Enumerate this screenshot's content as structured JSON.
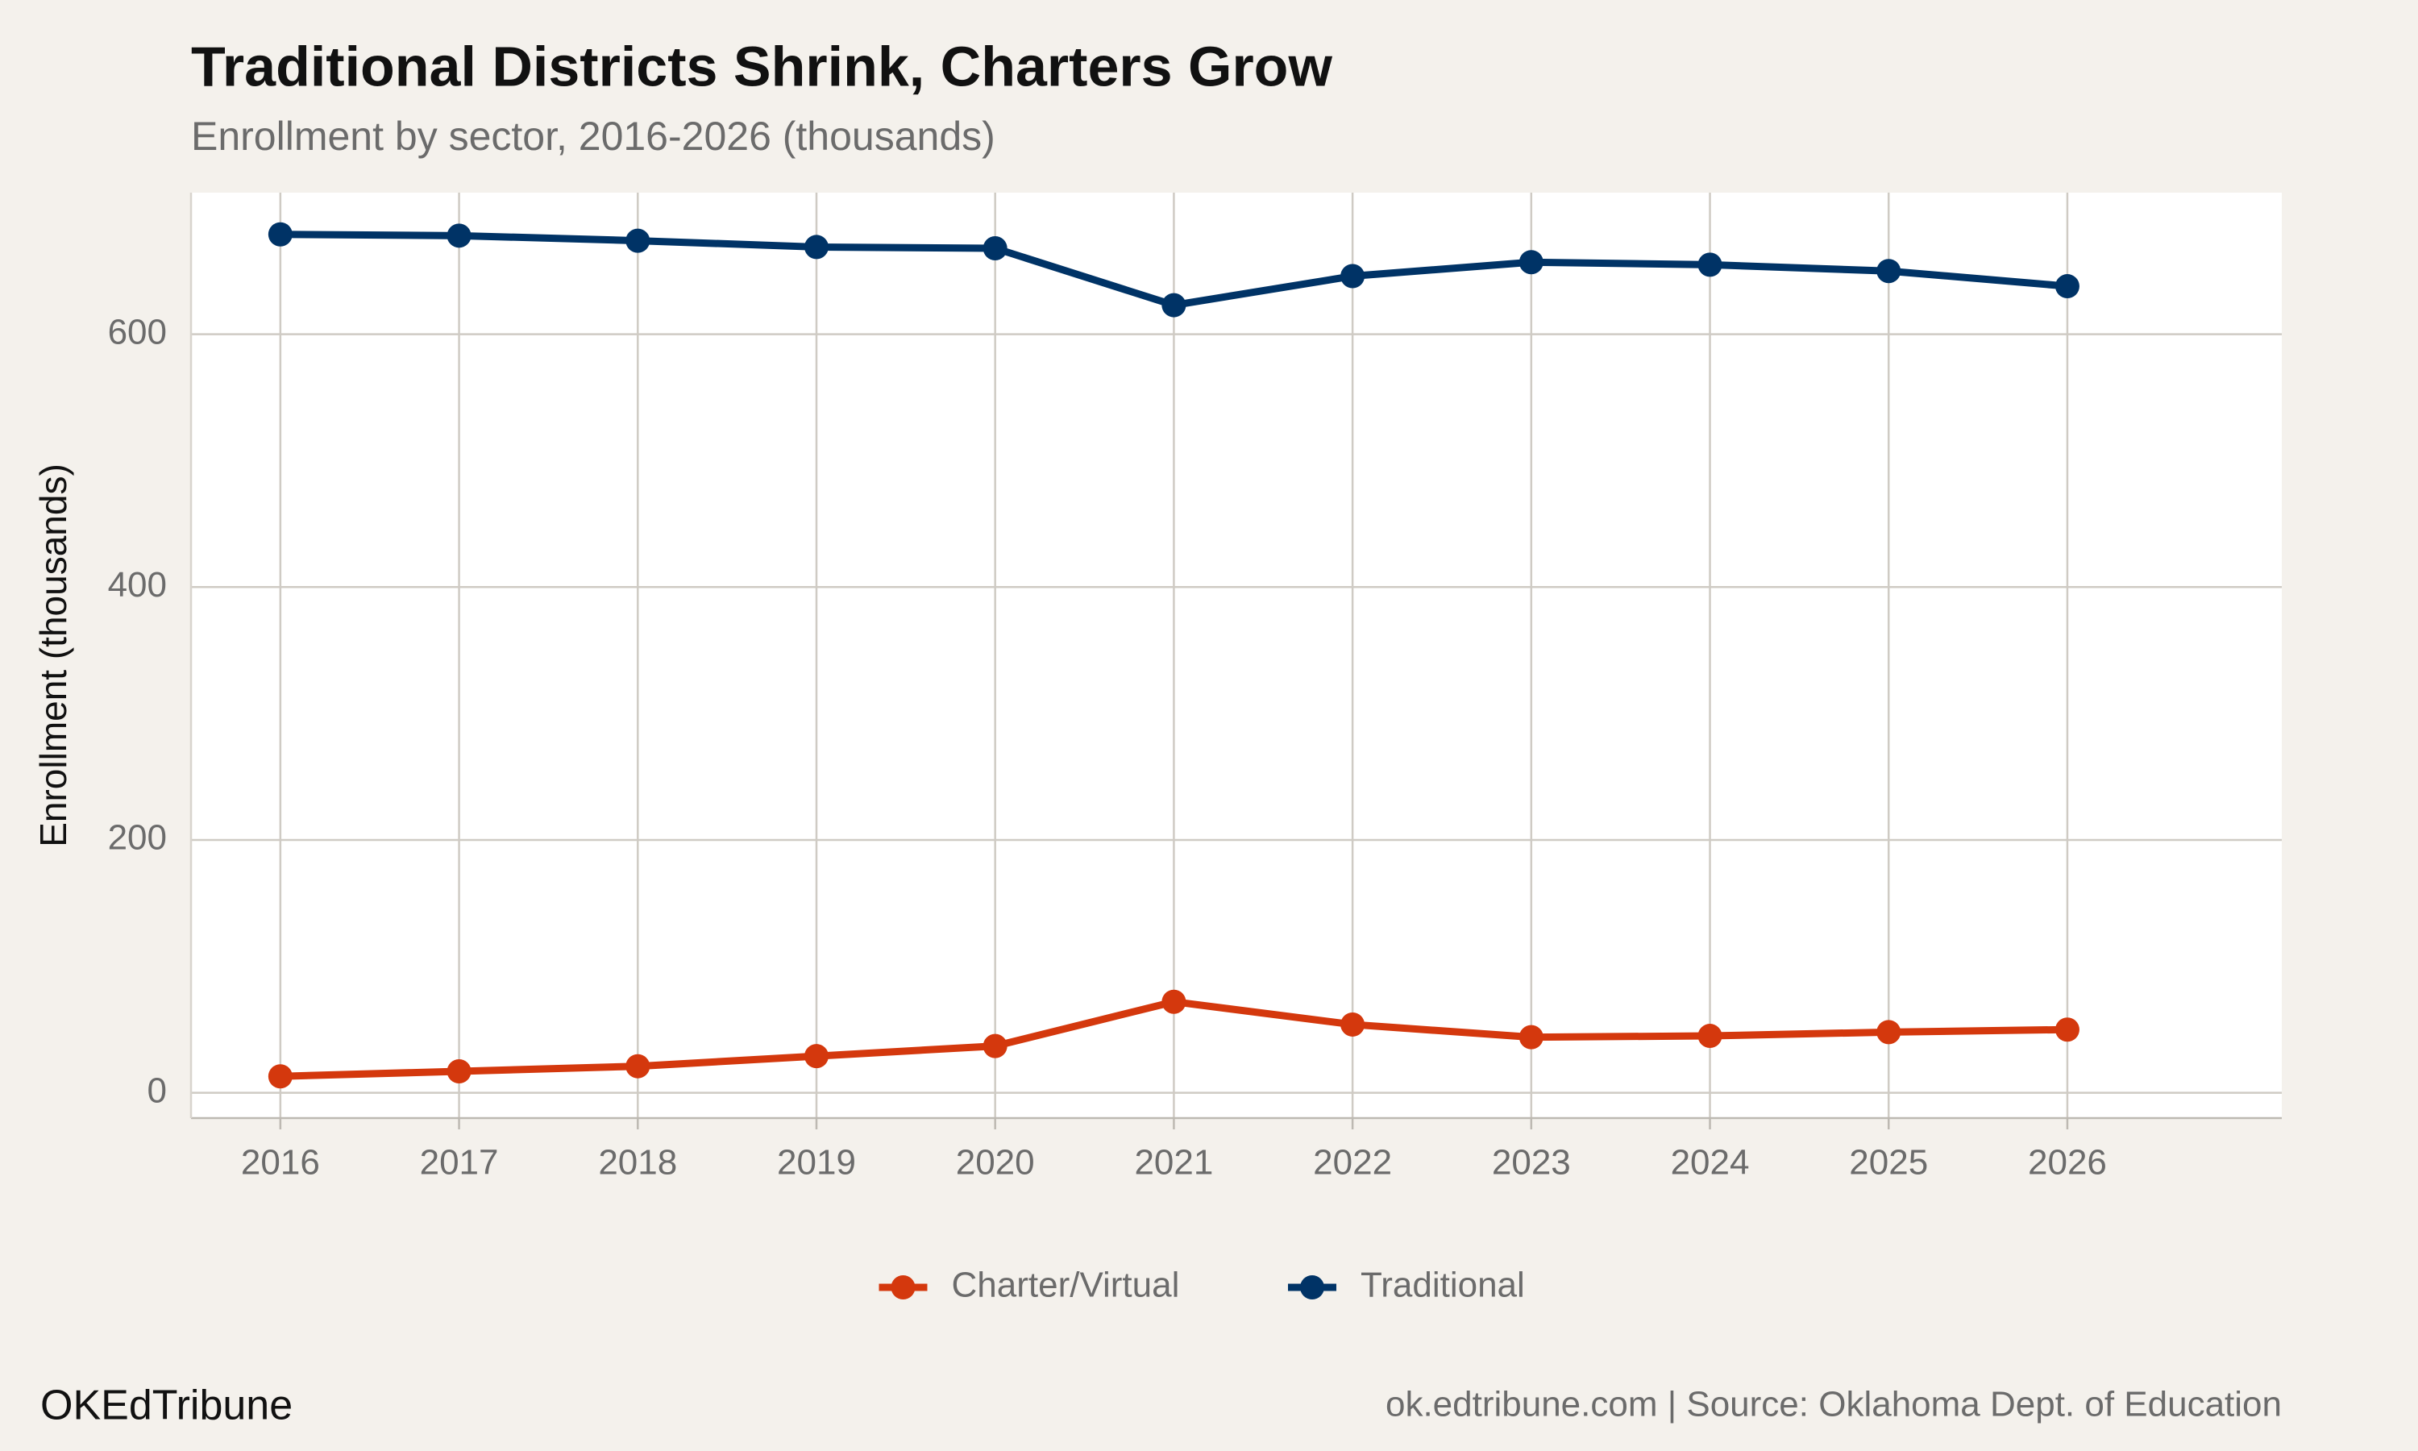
{
  "chart_data": {
    "type": "line",
    "title": "Traditional Districts Shrink, Charters Grow",
    "subtitle": "Enrollment by sector, 2016-2026 (thousands)",
    "y_label": "Enrollment (thousands)",
    "x": [
      2016,
      2017,
      2018,
      2019,
      2020,
      2021,
      2022,
      2023,
      2024,
      2025,
      2026
    ],
    "series": [
      {
        "name": "Charter/Virtual",
        "color": "#d4380d",
        "values": [
          13,
          17,
          21,
          29,
          37,
          72,
          54,
          44,
          45,
          48,
          50
        ]
      },
      {
        "name": "Traditional",
        "color": "#003366",
        "values": [
          679,
          678,
          674,
          669,
          668,
          623,
          646,
          657,
          655,
          650,
          638
        ]
      }
    ],
    "xlim": [
      2015.5,
      2027.2
    ],
    "xticks": [
      2016,
      2017,
      2018,
      2019,
      2020,
      2021,
      2022,
      2023,
      2024,
      2025,
      2026
    ],
    "ylim": [
      -20,
      712
    ],
    "yticks": [
      0,
      200,
      400,
      600
    ],
    "grid": true,
    "legend": "bottom",
    "brand": "OKEdTribune",
    "source": "ok.edtribune.com | Source: Oklahoma Dept. of Education"
  }
}
